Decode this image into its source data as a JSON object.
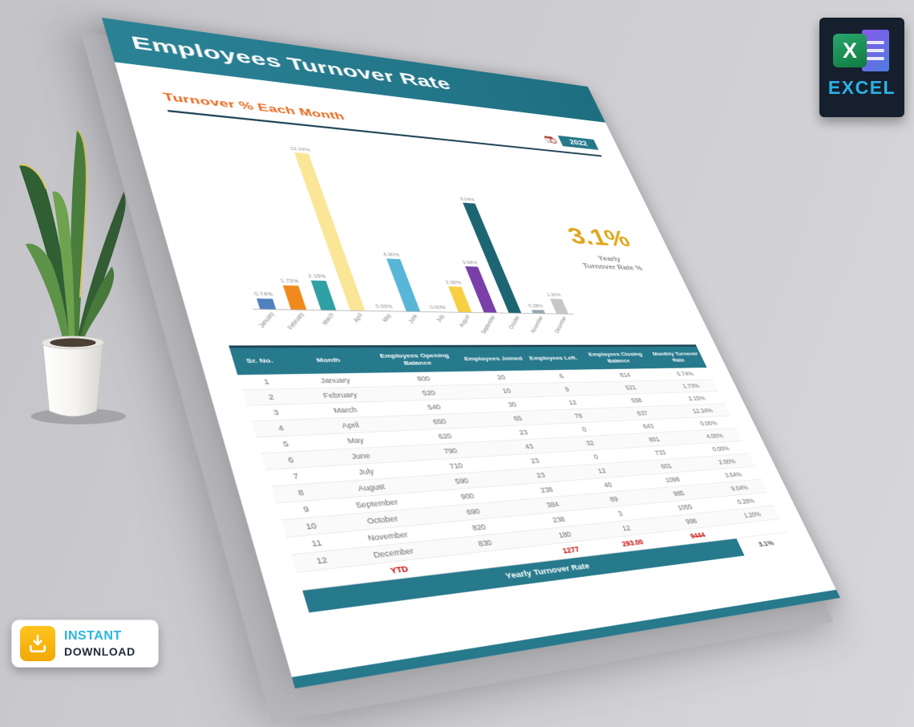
{
  "document": {
    "header": {
      "title": "Employees Turnover Rate",
      "background": "#27798c"
    },
    "section_header": {
      "title": "Turnover % Each Month",
      "title_color": "#e8681c",
      "year_badge": "2022"
    },
    "summary": {
      "value": "3.1%",
      "label_line1": "Yearly",
      "label_line2": "Turnover Rate %",
      "value_color": "#dfa417"
    }
  },
  "chart_data": {
    "type": "bar",
    "title": "Turnover % Each Month",
    "categories": [
      "January",
      "February",
      "March",
      "April",
      "May",
      "June",
      "July",
      "August",
      "September",
      "October",
      "November",
      "December"
    ],
    "values": [
      0.74,
      1.73,
      2.15,
      12.24,
      0,
      4,
      0,
      2,
      3.64,
      9.04,
      0.28,
      1.2
    ],
    "value_labels": [
      "0.74%",
      "1.73%",
      "2.15%",
      "12.24%",
      "0.00%",
      "4.00%",
      "0.00%",
      "2.00%",
      "3.64%",
      "9.04%",
      "0.28%",
      "1.20%"
    ],
    "bar_colors": [
      "#4f81bd",
      "#f08a1d",
      "#2fa0a4",
      "#fbe596",
      "#b9b9b9",
      "#58b6d8",
      "#b9b9b9",
      "#f7cf43",
      "#7a3fa8",
      "#1d6573",
      "#93a9b4",
      "#c7c7c7"
    ],
    "xlabel": "",
    "ylabel": "",
    "ylim": [
      0,
      13
    ],
    "grid": false,
    "legend": false,
    "annotation": {
      "value": "3.1%",
      "label": "Yearly Turnover Rate %"
    }
  },
  "table": {
    "columns": [
      "Sr. No.",
      "Month",
      "Employees Opening Balance",
      "Employees Joined",
      "Employees Left.",
      "Employees Closing Balance",
      "Monthly Turnover Rate"
    ],
    "rows": [
      [
        "1",
        "January",
        "800",
        "20",
        "6",
        "814",
        "0.74%"
      ],
      [
        "2",
        "February",
        "520",
        "10",
        "9",
        "521",
        "1.73%"
      ],
      [
        "3",
        "March",
        "540",
        "30",
        "12",
        "558",
        "2.15%"
      ],
      [
        "4",
        "April",
        "650",
        "65",
        "78",
        "637",
        "12.24%"
      ],
      [
        "5",
        "May",
        "620",
        "23",
        "0",
        "643",
        "0.00%"
      ],
      [
        "6",
        "June",
        "790",
        "43",
        "32",
        "801",
        "4.00%"
      ],
      [
        "7",
        "July",
        "710",
        "23",
        "0",
        "733",
        "0.00%"
      ],
      [
        "8",
        "August",
        "590",
        "23",
        "12",
        "601",
        "2.00%"
      ],
      [
        "9",
        "September",
        "900",
        "238",
        "40",
        "1098",
        "3.64%"
      ],
      [
        "10",
        "October",
        "690",
        "384",
        "89",
        "985",
        "9.04%"
      ],
      [
        "11",
        "November",
        "820",
        "238",
        "3",
        "1055",
        "0.28%"
      ],
      [
        "12",
        "December",
        "830",
        "180",
        "12",
        "998",
        "1.20%"
      ]
    ],
    "ytd_row": [
      "",
      "YTD",
      "",
      "1277",
      "293.00",
      "9444",
      ""
    ],
    "ytd_color": "#c00000",
    "footer": {
      "label": "Yearly Turnover Rate",
      "value": "3.1%"
    }
  },
  "badges": {
    "excel": {
      "label": "EXCEL",
      "label_color": "#2bb3e6",
      "logo_letter": "X"
    },
    "download": {
      "line1": "INSTANT",
      "line2": "DOWNLOAD",
      "accent": "#f5b50a"
    }
  }
}
